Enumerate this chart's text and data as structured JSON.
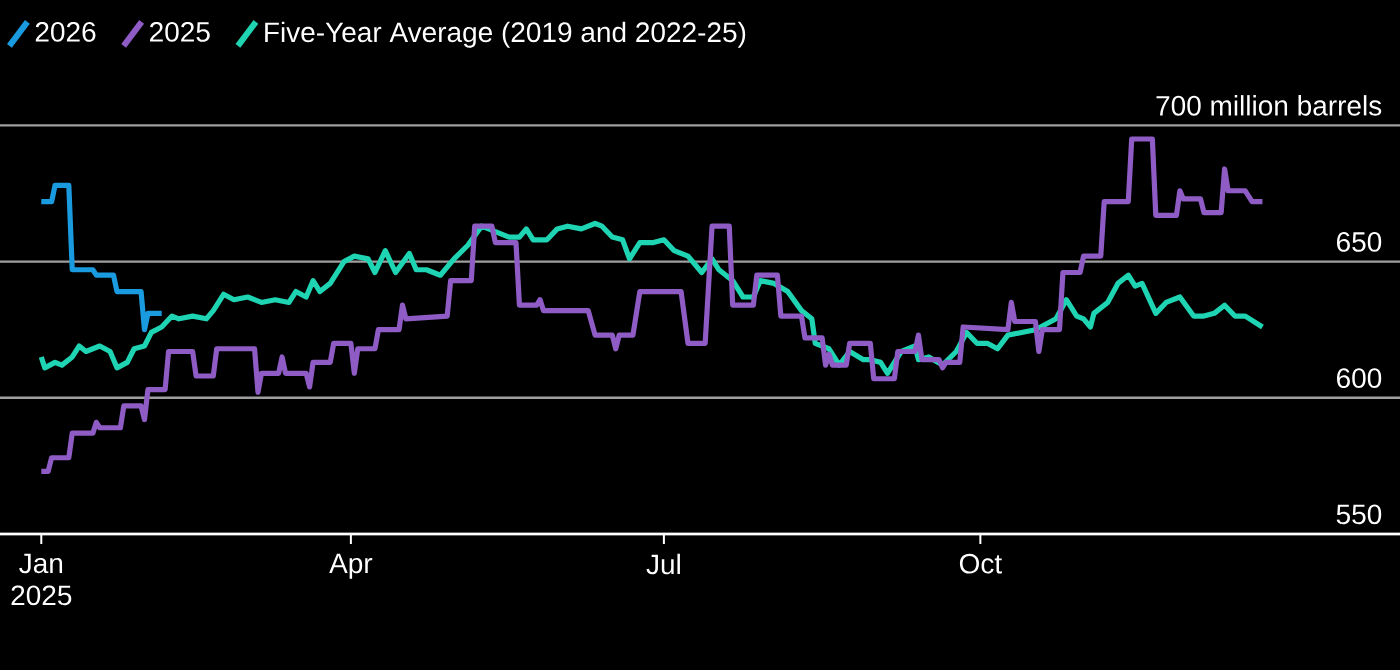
{
  "chart_data": {
    "type": "line",
    "series": [
      {
        "name": "2026",
        "color": "#1a9be0",
        "x": [
          "2025-01-01",
          "2025-01-04",
          "2025-01-05",
          "2025-01-09",
          "2025-01-10",
          "2025-01-16",
          "2025-01-17",
          "2025-01-22",
          "2025-01-23",
          "2025-01-30",
          "2025-01-31",
          "2025-02-01",
          "2025-02-05"
        ],
        "values": [
          672,
          672,
          678,
          678,
          647,
          647,
          645,
          645,
          639,
          639,
          625,
          631,
          631
        ]
      },
      {
        "name": "2025",
        "color": "#8e5cc4",
        "x": [
          "2025-01-01",
          "2025-01-03",
          "2025-01-04",
          "2025-01-09",
          "2025-01-10",
          "2025-01-16",
          "2025-01-17",
          "2025-01-18",
          "2025-01-24",
          "2025-01-25",
          "2025-01-30",
          "2025-01-31",
          "2025-02-01",
          "2025-02-06",
          "2025-02-07",
          "2025-02-14",
          "2025-02-15",
          "2025-02-20",
          "2025-02-21",
          "2025-03-04",
          "2025-03-05",
          "2025-03-06",
          "2025-03-11",
          "2025-03-12",
          "2025-03-13",
          "2025-03-19",
          "2025-03-20",
          "2025-03-21",
          "2025-03-26",
          "2025-03-27",
          "2025-04-01",
          "2025-04-02",
          "2025-04-03",
          "2025-04-08",
          "2025-04-09",
          "2025-04-15",
          "2025-04-16",
          "2025-04-17",
          "2025-04-29",
          "2025-04-30",
          "2025-05-06",
          "2025-05-07",
          "2025-05-12",
          "2025-05-13",
          "2025-05-19",
          "2025-05-20",
          "2025-05-25",
          "2025-05-26",
          "2025-05-27",
          "2025-06-09",
          "2025-06-11",
          "2025-06-16",
          "2025-06-17",
          "2025-06-18",
          "2025-06-22",
          "2025-06-24",
          "2025-07-06",
          "2025-07-08",
          "2025-07-13",
          "2025-07-15",
          "2025-07-20",
          "2025-07-21",
          "2025-07-27",
          "2025-07-28",
          "2025-08-03",
          "2025-08-04",
          "2025-08-10",
          "2025-08-11",
          "2025-08-16",
          "2025-08-17",
          "2025-08-18",
          "2025-08-19",
          "2025-08-23",
          "2025-08-24",
          "2025-08-30",
          "2025-08-31",
          "2025-09-06",
          "2025-09-07",
          "2025-09-12",
          "2025-09-13",
          "2025-09-14",
          "2025-09-19",
          "2025-09-20",
          "2025-09-21",
          "2025-09-25",
          "2025-09-26",
          "2025-10-09",
          "2025-10-10",
          "2025-10-11",
          "2025-10-17",
          "2025-10-18",
          "2025-10-19",
          "2025-10-24",
          "2025-10-25",
          "2025-10-30",
          "2025-10-31",
          "2025-11-05",
          "2025-11-06",
          "2025-11-13",
          "2025-11-14",
          "2025-11-20",
          "2025-11-21",
          "2025-11-27",
          "2025-11-28",
          "2025-11-29",
          "2025-12-04",
          "2025-12-05",
          "2025-12-10",
          "2025-12-11",
          "2025-12-12",
          "2025-12-17",
          "2025-12-19",
          "2025-12-22"
        ],
        "values": [
          573,
          573,
          578,
          578,
          587,
          587,
          591,
          589,
          589,
          597,
          597,
          592,
          603,
          603,
          617,
          617,
          608,
          608,
          618,
          618,
          602,
          609,
          609,
          615,
          609,
          609,
          604,
          613,
          613,
          620,
          620,
          609,
          618,
          618,
          625,
          625,
          634,
          629,
          630,
          643,
          643,
          663,
          663,
          657,
          657,
          634,
          634,
          636,
          632,
          632,
          623,
          623,
          618,
          623,
          623,
          639,
          639,
          620,
          620,
          663,
          663,
          634,
          634,
          645,
          645,
          630,
          630,
          622,
          622,
          612,
          616,
          612,
          612,
          620,
          620,
          607,
          607,
          617,
          617,
          623,
          614,
          614,
          611,
          613,
          613,
          626,
          625,
          635,
          628,
          628,
          617,
          625,
          625,
          646,
          646,
          652,
          652,
          672,
          672,
          695,
          695,
          667,
          667,
          676,
          673,
          673,
          668,
          668,
          684,
          676,
          676,
          672,
          672
        ]
      },
      {
        "name": "Five-Year Average (2019 and 2022-25)",
        "color": "#1fd4b2",
        "x": [
          "2025-01-01",
          "2025-01-02",
          "2025-01-05",
          "2025-01-07",
          "2025-01-10",
          "2025-01-12",
          "2025-01-14",
          "2025-01-18",
          "2025-01-21",
          "2025-01-23",
          "2025-01-26",
          "2025-01-28",
          "2025-01-31",
          "2025-02-02",
          "2025-02-05",
          "2025-02-08",
          "2025-02-10",
          "2025-02-14",
          "2025-02-18",
          "2025-02-20",
          "2025-02-23",
          "2025-02-26",
          "2025-03-02",
          "2025-03-06",
          "2025-03-10",
          "2025-03-14",
          "2025-03-16",
          "2025-03-19",
          "2025-03-21",
          "2025-03-23",
          "2025-03-26",
          "2025-03-30",
          "2025-04-02",
          "2025-04-06",
          "2025-04-08",
          "2025-04-11",
          "2025-04-14",
          "2025-04-18",
          "2025-04-20",
          "2025-04-23",
          "2025-04-27",
          "2025-05-01",
          "2025-05-05",
          "2025-05-09",
          "2025-05-13",
          "2025-05-17",
          "2025-05-20",
          "2025-05-22",
          "2025-05-24",
          "2025-05-28",
          "2025-05-31",
          "2025-06-03",
          "2025-06-07",
          "2025-06-11",
          "2025-06-13",
          "2025-06-16",
          "2025-06-19",
          "2025-06-21",
          "2025-06-24",
          "2025-06-28",
          "2025-07-01",
          "2025-07-04",
          "2025-07-08",
          "2025-07-12",
          "2025-07-15",
          "2025-07-17",
          "2025-07-21",
          "2025-07-24",
          "2025-07-27",
          "2025-07-29",
          "2025-08-02",
          "2025-08-06",
          "2025-08-10",
          "2025-08-13",
          "2025-08-14",
          "2025-08-18",
          "2025-08-21",
          "2025-08-24",
          "2025-08-28",
          "2025-08-30",
          "2025-09-02",
          "2025-09-04",
          "2025-09-08",
          "2025-09-12",
          "2025-09-13",
          "2025-09-16",
          "2025-09-20",
          "2025-09-24",
          "2025-09-27",
          "2025-09-30",
          "2025-10-03",
          "2025-10-06",
          "2025-10-09",
          "2025-10-13",
          "2025-10-17",
          "2025-10-23",
          "2025-10-26",
          "2025-10-29",
          "2025-10-31",
          "2025-11-02",
          "2025-11-03",
          "2025-11-07",
          "2025-11-10",
          "2025-11-13",
          "2025-11-15",
          "2025-11-17",
          "2025-11-21",
          "2025-11-24",
          "2025-11-28",
          "2025-12-02",
          "2025-12-05",
          "2025-12-08",
          "2025-12-11",
          "2025-12-14",
          "2025-12-17",
          "2025-12-22"
        ],
        "values": [
          615,
          611,
          613,
          612,
          615,
          619,
          617,
          619,
          617,
          611,
          613,
          618,
          619,
          624,
          626,
          630,
          629,
          630,
          629,
          632,
          638,
          636,
          637,
          635,
          636,
          635,
          639,
          637,
          643,
          639,
          642,
          650,
          652,
          651,
          646,
          654,
          646,
          653,
          647,
          647,
          645,
          651,
          656,
          663,
          661,
          659,
          659,
          662,
          658,
          658,
          662,
          663,
          662,
          664,
          663,
          659,
          658,
          651,
          657,
          657,
          658,
          654,
          652,
          646,
          651,
          647,
          643,
          637,
          637,
          643,
          642,
          639,
          632,
          629,
          620,
          618,
          612,
          617,
          614,
          614,
          613,
          609,
          617,
          619,
          614,
          615,
          612,
          617,
          624,
          620,
          620,
          618,
          623,
          624,
          625,
          629,
          636,
          630,
          629,
          626,
          631,
          635,
          642,
          645,
          641,
          642,
          631,
          635,
          637,
          630,
          630,
          631,
          634,
          630,
          630,
          626
        ]
      }
    ],
    "xlim": [
      "2024-12-20",
      "2026-01-31"
    ],
    "xticks": [
      {
        "value": "2025-01-01",
        "label": "Jan 2025"
      },
      {
        "value": "2025-04-01",
        "label": "Apr"
      },
      {
        "value": "2025-07-01",
        "label": "Jul"
      },
      {
        "value": "2025-10-01",
        "label": "Oct"
      }
    ],
    "ylim": [
      550,
      700
    ],
    "yticks": [
      550,
      600,
      650,
      {
        "value": 700,
        "label": "700 million barrels"
      }
    ],
    "grid": "y",
    "legend": "top left",
    "marker": "none",
    "line_style": "solid"
  }
}
